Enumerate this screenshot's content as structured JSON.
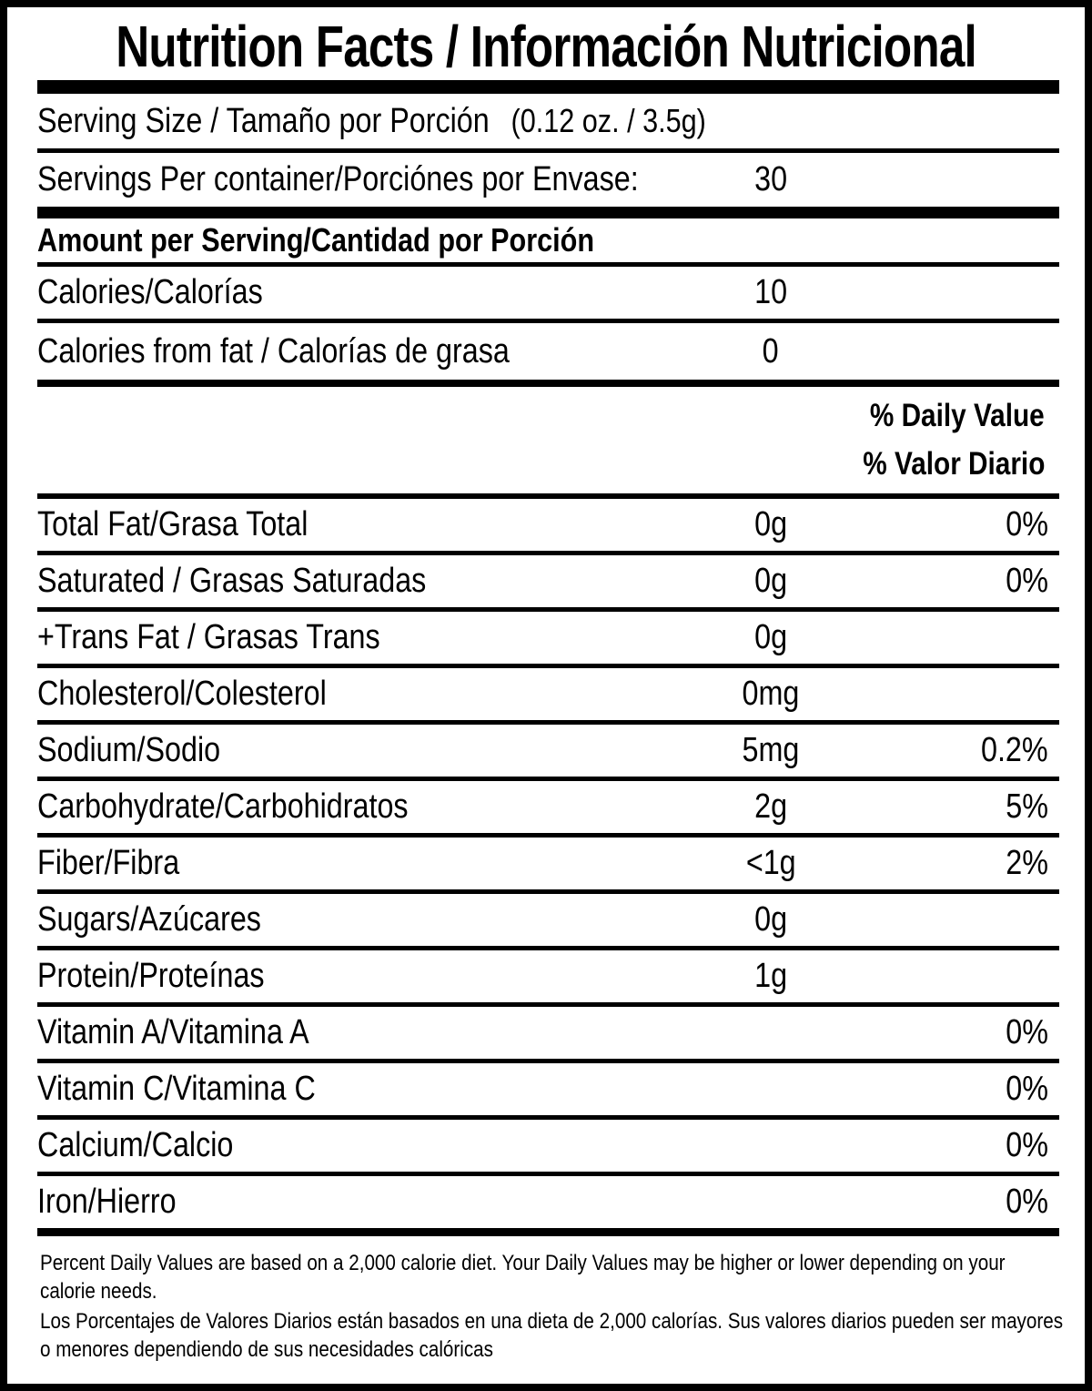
{
  "label": {
    "title": "Nutrition Facts / Información Nutricional",
    "serving_size": {
      "label": "Serving Size / Tamaño por Porción",
      "value": "(0.12 oz. / 3.5g)"
    },
    "servings_per_container": {
      "label": "Servings Per container/Porciónes por Envase:",
      "value": "30"
    },
    "amount_per_serving_header": "Amount per Serving/Cantidad por Porción",
    "calories": {
      "label": "Calories/Calorías",
      "value": "10"
    },
    "calories_from_fat": {
      "label": "Calories from fat / Calorías de grasa",
      "value": "0"
    },
    "daily_value_header_en": "% Daily Value",
    "daily_value_header_es": "% Valor Diario",
    "nutrients": [
      {
        "name": "Total Fat/Grasa Total",
        "amount": "0g",
        "dv": "0%"
      },
      {
        "name": "Saturated / Grasas Saturadas",
        "amount": "0g",
        "dv": "0%"
      },
      {
        "name": "+Trans Fat / Grasas Trans",
        "amount": "0g",
        "dv": ""
      },
      {
        "name": "Cholesterol/Colesterol",
        "amount": "0mg",
        "dv": ""
      },
      {
        "name": "Sodium/Sodio",
        "amount": "5mg",
        "dv": "0.2%"
      },
      {
        "name": "Carbohydrate/Carbohidratos",
        "amount": "2g",
        "dv": "5%"
      },
      {
        "name": "Fiber/Fibra",
        "amount": "<1g",
        "dv": "2%"
      },
      {
        "name": "Sugars/Azúcares",
        "amount": "0g",
        "dv": ""
      },
      {
        "name": "Protein/Proteínas",
        "amount": "1g",
        "dv": ""
      },
      {
        "name": "Vitamin A/Vitamina A",
        "amount": "",
        "dv": "0%"
      },
      {
        "name": "Vitamin C/Vitamina C",
        "amount": "",
        "dv": "0%"
      },
      {
        "name": "Calcium/Calcio",
        "amount": "",
        "dv": "0%"
      },
      {
        "name": "Iron/Hierro",
        "amount": "",
        "dv": "0%"
      }
    ],
    "footnote_en": "Percent Daily Values are based on a 2,000 calorie diet. Your Daily Values may be higher or lower depending on your calorie needs.",
    "footnote_es": "Los Porcentajes de Valores Diarios están basados en una dieta de 2,000 calorías. Sus valores diarios pueden ser mayores o menores dependiendo de sus necesidades calóricas",
    "colors": {
      "ink": "#000000",
      "paper": "#ffffff"
    }
  }
}
